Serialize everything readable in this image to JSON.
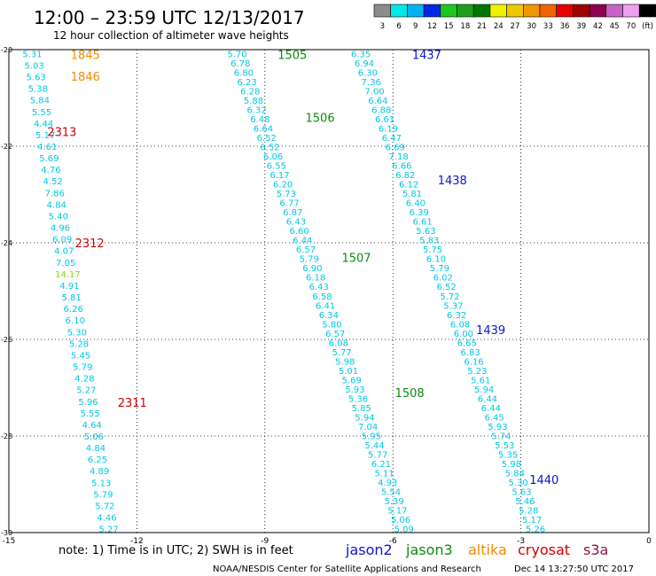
{
  "header": {
    "title": "12:00 – 23:59 UTC 12/13/2017",
    "subtitle": "12 hour collection of altimeter wave heights",
    "scale_labels": [
      "3",
      "6",
      "9",
      "12",
      "15",
      "18",
      "21",
      "24",
      "27",
      "30",
      "33",
      "36",
      "39",
      "42",
      "45",
      "70",
      "(ft)"
    ],
    "scale_colors": [
      "#8c8c8c",
      "#00e8e8",
      "#00b4f0",
      "#0028e6",
      "#1ec81e",
      "#1ea01e",
      "#007800",
      "#f0f000",
      "#f0c800",
      "#f09600",
      "#f06400",
      "#e60000",
      "#a00000",
      "#8c0050",
      "#c864c8",
      "#f0a0f0",
      "#000000"
    ]
  },
  "footer": {
    "note": "note:  1) Time is in UTC; 2) SWH is in feet",
    "legend": [
      {
        "label": "jason2",
        "color": "#0a14d2"
      },
      {
        "label": "jason3",
        "color": "#0a8c0a"
      },
      {
        "label": "altika",
        "color": "#f08c00"
      },
      {
        "label": "cryosat",
        "color": "#d20000"
      },
      {
        "label": "s3a",
        "color": "#8c1450"
      }
    ],
    "credit": "NOAA/NESDIS Center for Satellite Applications and Research",
    "timestamp": "Dec 14 13:27:50 UTC 2017"
  },
  "chart_data": {
    "type": "scatter",
    "xlim": [
      -15,
      0
    ],
    "ylim": [
      -30,
      -20
    ],
    "x_ticks": [
      "-15",
      "-12",
      "-9",
      "-6",
      "-3",
      "0"
    ],
    "y_ticks": [
      "-20",
      "-22",
      "-24",
      "-26",
      "-28",
      "-30"
    ],
    "grid": "dotted",
    "value_color": "#00c8e6",
    "value_color_alt": "#8cd21e",
    "passes": [
      {
        "satellite": "altika",
        "x0": -14.45,
        "y0": -20.08,
        "x1": -12.66,
        "y1": -29.92,
        "values": [
          "5.31",
          "5.03",
          "5.63",
          "5.38",
          "5.84",
          "5.55",
          "4.44",
          "5.17",
          "4.61",
          "5.69",
          "4.76",
          "4.52",
          "7.86",
          "4.84",
          "5.40",
          "4.96",
          "6.09",
          "4.07",
          "7.05",
          "14.17",
          "4.91",
          "5.81",
          "6.26",
          "6.10",
          "5.30",
          "5.28",
          "5.45",
          "5.79",
          "4.28",
          "5.27",
          "5.96",
          "5.55",
          "4.64",
          "5.06",
          "4.84",
          "6.25",
          "4.89",
          "5.13",
          "5.79",
          "5.72",
          "4.46",
          "5.27"
        ]
      },
      {
        "satellite": "jason3",
        "x0": -9.65,
        "y0": -20.08,
        "x1": -5.74,
        "y1": -29.92,
        "values": [
          "5.70",
          "6.78",
          "6.80",
          "6.23",
          "6.28",
          "5.88",
          "6.32",
          "6.48",
          "6.64",
          "6.52",
          "6.52",
          "6.06",
          "6.55",
          "6.17",
          "6.20",
          "5.73",
          "6.77",
          "6.87",
          "6.43",
          "6.60",
          "6.44",
          "6.57",
          "5.79",
          "6.90",
          "6.18",
          "6.43",
          "6.58",
          "6.41",
          "6.34",
          "5.80",
          "6.57",
          "6.08",
          "5.77",
          "5.98",
          "5.01",
          "5.69",
          "5.93",
          "5.36",
          "5.85",
          "5.94",
          "7.04",
          "5.95",
          "5.44",
          "5.77",
          "6.21",
          "5.11",
          "4.93",
          "5.54",
          "5.39",
          "5.17",
          "5.06",
          "5.09"
        ]
      },
      {
        "satellite": "jason2",
        "x0": -6.75,
        "y0": -20.08,
        "x1": -2.66,
        "y1": -29.92,
        "values": [
          "6.35",
          "6.94",
          "6.30",
          "7.36",
          "7.00",
          "6.64",
          "6.88",
          "6.61",
          "6.19",
          "6.47",
          "6.69",
          "7.18",
          "6.66",
          "6.82",
          "6.12",
          "5.81",
          "6.40",
          "6.39",
          "6.61",
          "5.63",
          "5.83",
          "5.75",
          "6.10",
          "5.79",
          "6.02",
          "6.52",
          "5.72",
          "5.37",
          "6.32",
          "6.08",
          "6.00",
          "6.65",
          "6.83",
          "6.16",
          "5.23",
          "5.61",
          "5.94",
          "6.44",
          "6.44",
          "6.45",
          "5.93",
          "5.74",
          "5.53",
          "5.35",
          "5.98",
          "5.84",
          "5.30",
          "5.63",
          "5.46",
          "5.28",
          "5.17",
          "5.26"
        ]
      }
    ],
    "pass_labels": [
      {
        "text": "1845",
        "satellite": "altika",
        "x": -13.55,
        "y": -20.1
      },
      {
        "text": "1846",
        "satellite": "altika",
        "x": -13.55,
        "y": -20.55
      },
      {
        "text": "2313",
        "satellite": "cryosat",
        "x": -14.1,
        "y": -21.7
      },
      {
        "text": "2312",
        "satellite": "cryosat",
        "x": -13.45,
        "y": -24.0
      },
      {
        "text": "2311",
        "satellite": "cryosat",
        "x": -12.45,
        "y": -27.3
      },
      {
        "text": "1505",
        "satellite": "jason3",
        "x": -8.7,
        "y": -20.1
      },
      {
        "text": "1506",
        "satellite": "jason3",
        "x": -8.05,
        "y": -21.4
      },
      {
        "text": "1507",
        "satellite": "jason3",
        "x": -7.2,
        "y": -24.3
      },
      {
        "text": "1508",
        "satellite": "jason3",
        "x": -5.95,
        "y": -27.1
      },
      {
        "text": "1437",
        "satellite": "jason2",
        "x": -5.55,
        "y": -20.1
      },
      {
        "text": "1438",
        "satellite": "jason2",
        "x": -4.95,
        "y": -22.7
      },
      {
        "text": "1439",
        "satellite": "jason2",
        "x": -4.05,
        "y": -25.8
      },
      {
        "text": "1440",
        "satellite": "jason2",
        "x": -2.8,
        "y": -28.9
      }
    ]
  }
}
